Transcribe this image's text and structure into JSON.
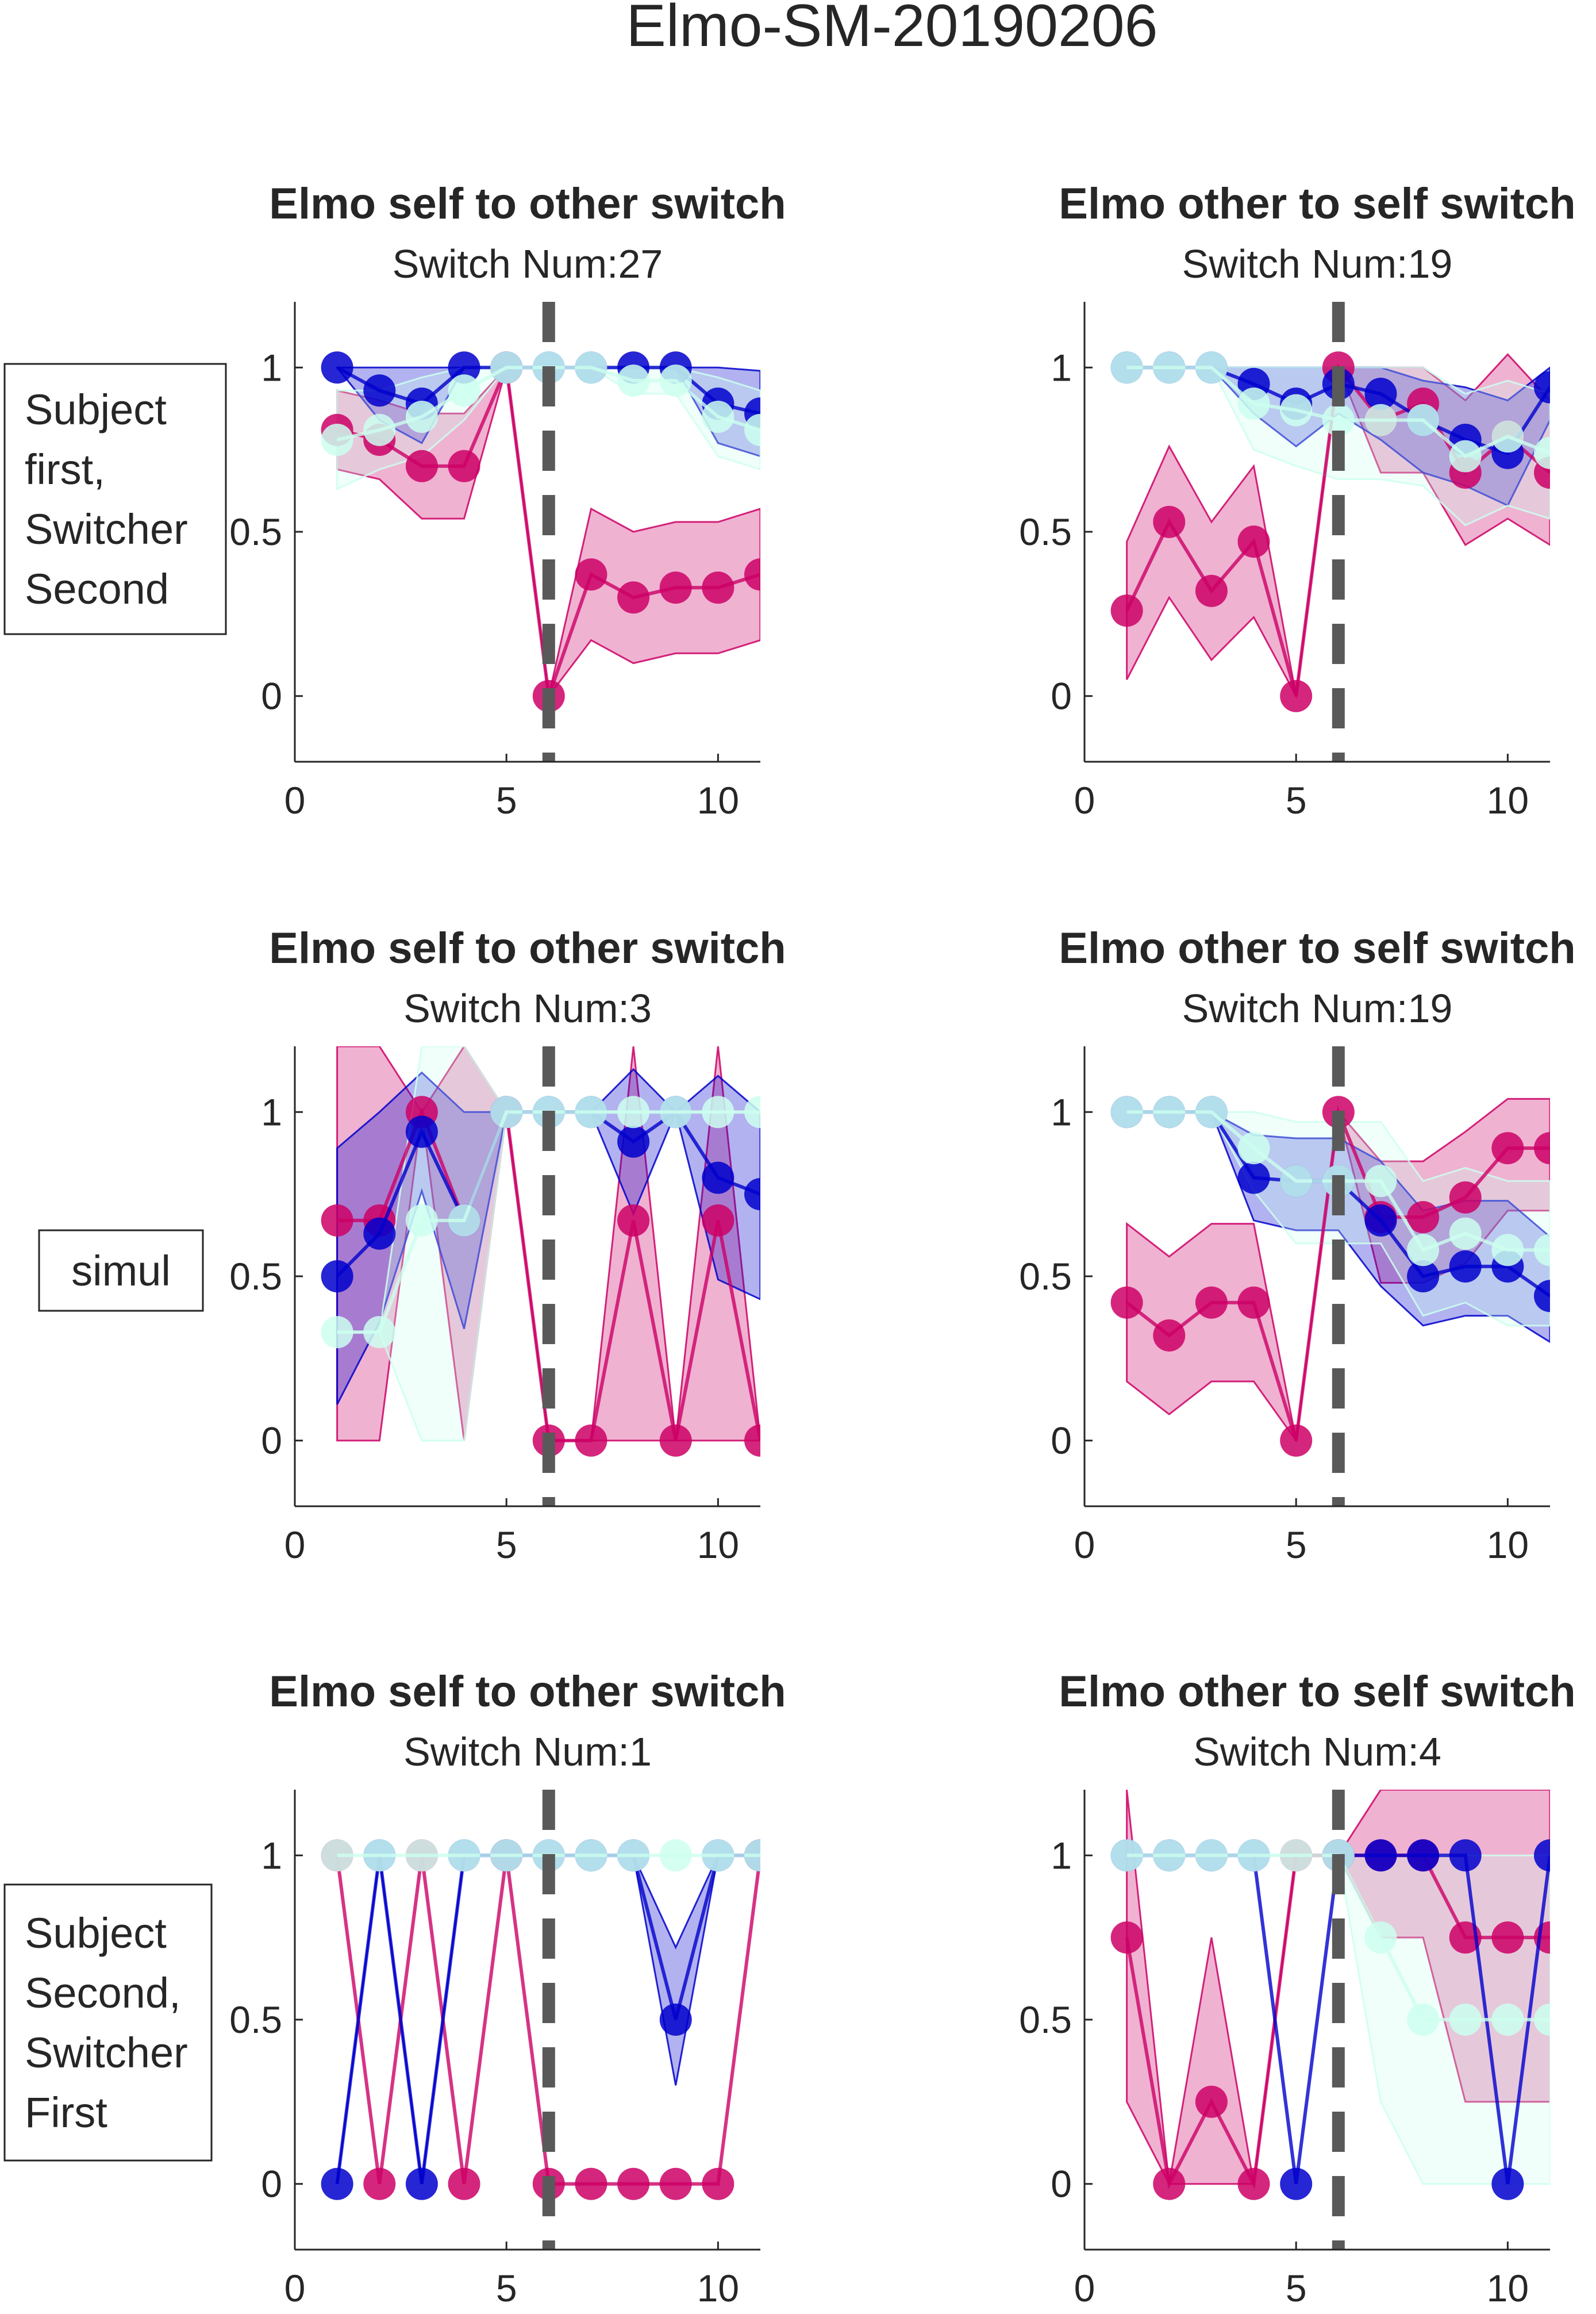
{
  "figure": {
    "title": "Elmo-SM-20190206"
  },
  "row_labels": [
    {
      "lines": [
        "Subject",
        "first,",
        "Switcher",
        "Second"
      ]
    },
    {
      "lines": [
        "simul"
      ]
    },
    {
      "lines": [
        "Subject",
        "Second,",
        "Switcher",
        "First"
      ]
    }
  ],
  "colors": {
    "magenta": "#cc0066",
    "blue": "#0000cc",
    "mint": "#ccffee",
    "switch_line": "#595959"
  },
  "chart_data": [
    {
      "type": "line",
      "title": "Elmo self to other switch",
      "subtitle": "Switch Num:27",
      "xlim": [
        0,
        11
      ],
      "ylim": [
        -0.2,
        1.2
      ],
      "x_ticks": [
        0,
        5,
        10
      ],
      "y_ticks": [
        0,
        0.5,
        1
      ],
      "y_tick_labels": [
        "0",
        "0.5",
        "1"
      ],
      "switch_x": 6,
      "series": [
        {
          "color": "magenta",
          "x": [
            1,
            2,
            3,
            4,
            5,
            6,
            7,
            8,
            9,
            10,
            11
          ],
          "y": [
            0.81,
            0.78,
            0.7,
            0.7,
            1.0,
            0.0,
            0.37,
            0.3,
            0.33,
            0.33,
            0.37
          ],
          "upper": [
            0.93,
            0.9,
            0.86,
            0.86,
            1.0,
            0.0,
            0.57,
            0.5,
            0.53,
            0.53,
            0.57
          ],
          "lower": [
            0.69,
            0.66,
            0.54,
            0.54,
            1.0,
            0.0,
            0.17,
            0.1,
            0.13,
            0.13,
            0.17
          ]
        },
        {
          "color": "blue",
          "x": [
            1,
            2,
            3,
            4,
            5,
            6,
            7,
            8,
            9,
            10,
            11
          ],
          "y": [
            1.0,
            0.93,
            0.89,
            1.0,
            1.0,
            1.0,
            1.0,
            1.0,
            1.0,
            0.89,
            0.86
          ],
          "upper": [
            1.0,
            1.0,
            1.0,
            1.0,
            1.0,
            1.0,
            1.0,
            1.0,
            1.0,
            1.0,
            0.99
          ],
          "lower": [
            1.0,
            0.84,
            0.77,
            1.0,
            1.0,
            1.0,
            1.0,
            1.0,
            1.0,
            0.77,
            0.73
          ]
        },
        {
          "color": "mint",
          "x": [
            1,
            2,
            3,
            4,
            5,
            6,
            7,
            8,
            9,
            10,
            11
          ],
          "y": [
            0.78,
            0.81,
            0.85,
            0.93,
            1.0,
            1.0,
            1.0,
            0.96,
            0.96,
            0.85,
            0.81
          ],
          "upper": [
            0.93,
            0.93,
            0.97,
            1.0,
            1.0,
            1.0,
            1.0,
            1.0,
            1.0,
            0.97,
            0.93
          ],
          "lower": [
            0.63,
            0.69,
            0.73,
            0.84,
            1.0,
            1.0,
            1.0,
            0.92,
            0.92,
            0.73,
            0.69
          ]
        }
      ]
    },
    {
      "type": "line",
      "title": "Elmo other to self switch",
      "subtitle": "Switch Num:19",
      "xlim": [
        0,
        11
      ],
      "ylim": [
        -0.2,
        1.2
      ],
      "x_ticks": [
        0,
        5,
        10
      ],
      "y_ticks": [
        0,
        0.5,
        1
      ],
      "y_tick_labels": [
        "0",
        "0.5",
        "1"
      ],
      "switch_x": 6,
      "series": [
        {
          "color": "magenta",
          "x": [
            1,
            2,
            3,
            4,
            5,
            6,
            7,
            8,
            9,
            10,
            11
          ],
          "y": [
            0.26,
            0.53,
            0.32,
            0.47,
            0.0,
            1.0,
            0.84,
            0.89,
            0.68,
            0.79,
            0.68
          ],
          "upper": [
            0.47,
            0.76,
            0.53,
            0.7,
            0.0,
            1.0,
            1.0,
            1.0,
            0.9,
            1.04,
            0.9
          ],
          "lower": [
            0.05,
            0.3,
            0.11,
            0.24,
            0.0,
            1.0,
            0.68,
            0.68,
            0.46,
            0.54,
            0.46
          ]
        },
        {
          "color": "blue",
          "x": [
            1,
            2,
            3,
            4,
            5,
            6,
            7,
            8,
            9,
            10,
            11
          ],
          "y": [
            1.0,
            1.0,
            1.0,
            0.95,
            0.89,
            0.95,
            0.92,
            0.84,
            0.78,
            0.74,
            0.94
          ],
          "upper": [
            1.0,
            1.0,
            1.0,
            1.0,
            1.0,
            1.0,
            1.0,
            0.96,
            0.94,
            0.9,
            1.0
          ],
          "lower": [
            1.0,
            1.0,
            1.0,
            0.86,
            0.76,
            0.86,
            0.78,
            0.68,
            0.64,
            0.58,
            0.84
          ]
        },
        {
          "color": "mint",
          "x": [
            1,
            2,
            3,
            4,
            5,
            6,
            7,
            8,
            9,
            10,
            11
          ],
          "y": [
            1.0,
            1.0,
            1.0,
            0.89,
            0.87,
            0.84,
            0.84,
            0.84,
            0.73,
            0.79,
            0.74
          ],
          "upper": [
            1.0,
            1.0,
            1.0,
            1.0,
            1.0,
            1.0,
            1.0,
            1.0,
            0.92,
            0.96,
            0.92
          ],
          "lower": [
            1.0,
            1.0,
            1.0,
            0.75,
            0.7,
            0.66,
            0.66,
            0.64,
            0.52,
            0.58,
            0.54
          ]
        }
      ]
    },
    {
      "type": "line",
      "title": "Elmo self to other switch",
      "subtitle": "Switch Num:3",
      "xlim": [
        0,
        11
      ],
      "ylim": [
        -0.2,
        1.2
      ],
      "x_ticks": [
        0,
        5,
        10
      ],
      "y_ticks": [
        0,
        0.5,
        1
      ],
      "y_tick_labels": [
        "0",
        "0.5",
        "1"
      ],
      "switch_x": 6,
      "series": [
        {
          "color": "magenta",
          "x": [
            1,
            2,
            3,
            4,
            5,
            6,
            7,
            8,
            9,
            10,
            11
          ],
          "y": [
            0.67,
            0.67,
            1.0,
            0.67,
            1.0,
            0.0,
            0.0,
            0.67,
            0.0,
            0.67,
            0.0
          ],
          "upper": [
            1.33,
            1.33,
            1.0,
            1.33,
            1.0,
            0.0,
            0.0,
            1.33,
            0.0,
            1.33,
            0.0
          ],
          "lower": [
            0.0,
            0.0,
            1.0,
            0.0,
            1.0,
            0.0,
            0.0,
            0.0,
            0.0,
            0.0,
            0.0
          ]
        },
        {
          "color": "blue",
          "x": [
            1,
            2,
            3,
            4,
            5,
            6,
            7,
            8,
            9,
            10,
            11
          ],
          "y": [
            0.5,
            0.63,
            0.94,
            0.67,
            1.0,
            1.0,
            1.0,
            0.91,
            1.0,
            0.8,
            0.75
          ],
          "upper": [
            0.89,
            1.0,
            1.12,
            1.0,
            1.0,
            1.0,
            1.0,
            1.13,
            1.0,
            1.11,
            1.0
          ],
          "lower": [
            0.11,
            0.36,
            0.76,
            0.34,
            1.0,
            1.0,
            1.0,
            0.69,
            1.0,
            0.49,
            0.43
          ]
        },
        {
          "color": "mint",
          "x": [
            1,
            2,
            3,
            4,
            5,
            6,
            7,
            8,
            9,
            10,
            11
          ],
          "y": [
            0.33,
            0.33,
            0.67,
            0.67,
            1.0,
            1.0,
            1.0,
            1.0,
            1.0,
            1.0,
            1.0
          ],
          "upper": [
            0.33,
            0.33,
            1.33,
            1.33,
            1.0,
            1.0,
            1.0,
            1.0,
            1.0,
            1.0,
            1.0
          ],
          "lower": [
            0.33,
            0.33,
            0.0,
            0.0,
            1.0,
            1.0,
            1.0,
            1.0,
            1.0,
            1.0,
            1.0
          ]
        }
      ]
    },
    {
      "type": "line",
      "title": "Elmo other to self switch",
      "subtitle": "Switch Num:19",
      "xlim": [
        0,
        11
      ],
      "ylim": [
        -0.2,
        1.2
      ],
      "x_ticks": [
        0,
        5,
        10
      ],
      "y_ticks": [
        0,
        0.5,
        1
      ],
      "y_tick_labels": [
        "0",
        "0.5",
        "1"
      ],
      "switch_x": 6,
      "series": [
        {
          "color": "magenta",
          "x": [
            1,
            2,
            3,
            4,
            5,
            6,
            7,
            8,
            9,
            10,
            11
          ],
          "y": [
            0.42,
            0.32,
            0.42,
            0.42,
            0.0,
            1.0,
            0.68,
            0.68,
            0.74,
            0.89,
            0.89
          ],
          "upper": [
            0.66,
            0.56,
            0.66,
            0.66,
            0.0,
            1.0,
            0.85,
            0.85,
            0.94,
            1.04,
            1.04
          ],
          "lower": [
            0.18,
            0.08,
            0.18,
            0.18,
            0.0,
            1.0,
            0.48,
            0.48,
            0.54,
            0.7,
            0.7
          ]
        },
        {
          "color": "blue",
          "x": [
            1,
            2,
            3,
            4,
            5,
            6,
            7,
            8,
            9,
            10,
            11
          ],
          "y": [
            1.0,
            1.0,
            1.0,
            0.8,
            0.79,
            0.79,
            0.67,
            0.5,
            0.53,
            0.53,
            0.44
          ],
          "upper": [
            1.0,
            1.0,
            1.0,
            0.93,
            0.92,
            0.92,
            0.85,
            0.7,
            0.73,
            0.73,
            0.62
          ],
          "lower": [
            1.0,
            1.0,
            1.0,
            0.67,
            0.64,
            0.64,
            0.47,
            0.35,
            0.38,
            0.38,
            0.3
          ]
        },
        {
          "color": "mint",
          "x": [
            1,
            2,
            3,
            4,
            5,
            6,
            7,
            8,
            9,
            10,
            11
          ],
          "y": [
            1.0,
            1.0,
            1.0,
            0.89,
            0.79,
            0.79,
            0.79,
            0.58,
            0.63,
            0.58,
            0.58
          ],
          "upper": [
            1.0,
            1.0,
            1.0,
            1.0,
            0.97,
            0.97,
            0.97,
            0.79,
            0.83,
            0.79,
            0.79
          ],
          "lower": [
            1.0,
            1.0,
            1.0,
            0.76,
            0.6,
            0.6,
            0.6,
            0.38,
            0.42,
            0.35,
            0.35
          ]
        }
      ]
    },
    {
      "type": "line",
      "title": "Elmo self to other switch",
      "subtitle": "Switch Num:1",
      "xlim": [
        0,
        11
      ],
      "ylim": [
        -0.2,
        1.2
      ],
      "x_ticks": [
        0,
        5,
        10
      ],
      "y_ticks": [
        0,
        0.5,
        1
      ],
      "y_tick_labels": [
        "0",
        "0.5",
        "1"
      ],
      "switch_x": 6,
      "series": [
        {
          "color": "magenta",
          "x": [
            1,
            2,
            3,
            4,
            5,
            6,
            7,
            8,
            9,
            10,
            11
          ],
          "y": [
            1.0,
            0.0,
            1.0,
            0.0,
            1.0,
            0.0,
            0.0,
            0.0,
            0.0,
            0.0,
            1.0
          ]
        },
        {
          "color": "blue",
          "x": [
            1,
            2,
            3,
            4,
            5,
            6,
            7,
            8,
            9,
            10,
            11
          ],
          "y": [
            0.0,
            1.0,
            0.0,
            1.0,
            1.0,
            1.0,
            1.0,
            1.0,
            0.5,
            1.0,
            1.0
          ],
          "upper": [
            0.0,
            1.0,
            0.0,
            1.0,
            1.0,
            1.0,
            1.0,
            1.0,
            0.72,
            1.0,
            1.0
          ],
          "lower": [
            0.0,
            1.0,
            0.0,
            1.0,
            1.0,
            1.0,
            1.0,
            1.0,
            0.3,
            1.0,
            1.0
          ]
        },
        {
          "color": "mint",
          "x": [
            1,
            2,
            3,
            4,
            5,
            6,
            7,
            8,
            9,
            10,
            11
          ],
          "y": [
            1.0,
            1.0,
            1.0,
            1.0,
            1.0,
            1.0,
            1.0,
            1.0,
            1.0,
            1.0,
            1.0
          ]
        }
      ]
    },
    {
      "type": "line",
      "title": "Elmo other to self switch",
      "subtitle": "Switch Num:4",
      "xlim": [
        0,
        11
      ],
      "ylim": [
        -0.2,
        1.2
      ],
      "x_ticks": [
        0,
        5,
        10
      ],
      "y_ticks": [
        0,
        0.5,
        1
      ],
      "y_tick_labels": [
        "0",
        "0.5",
        "1"
      ],
      "switch_x": 6,
      "series": [
        {
          "color": "magenta",
          "x": [
            1,
            2,
            3,
            4,
            5,
            6,
            7,
            8,
            9,
            10,
            11
          ],
          "y": [
            0.75,
            0.0,
            0.25,
            0.0,
            1.0,
            1.0,
            1.0,
            1.0,
            0.75,
            0.75,
            0.75
          ],
          "upper": [
            1.25,
            0.0,
            0.75,
            0.0,
            1.0,
            1.0,
            1.25,
            1.25,
            1.25,
            1.25,
            1.25
          ],
          "lower": [
            0.25,
            0.0,
            0.0,
            0.0,
            1.0,
            1.0,
            0.75,
            0.75,
            0.25,
            0.25,
            0.25
          ]
        },
        {
          "color": "blue",
          "x": [
            1,
            2,
            3,
            4,
            5,
            6,
            7,
            8,
            9,
            10,
            11
          ],
          "y": [
            1.0,
            1.0,
            1.0,
            1.0,
            0.0,
            1.0,
            1.0,
            1.0,
            1.0,
            0.0,
            1.0
          ]
        },
        {
          "color": "mint",
          "x": [
            1,
            2,
            3,
            4,
            5,
            6,
            7,
            8,
            9,
            10,
            11
          ],
          "y": [
            1.0,
            1.0,
            1.0,
            1.0,
            1.0,
            1.0,
            0.75,
            0.5,
            0.5,
            0.5,
            0.5
          ],
          "upper": [
            1.0,
            1.0,
            1.0,
            1.0,
            1.0,
            1.0,
            1.0,
            1.0,
            1.0,
            1.0,
            1.0
          ],
          "lower": [
            1.0,
            1.0,
            1.0,
            1.0,
            1.0,
            1.0,
            0.25,
            0.0,
            0.0,
            0.0,
            0.0
          ]
        }
      ]
    }
  ]
}
